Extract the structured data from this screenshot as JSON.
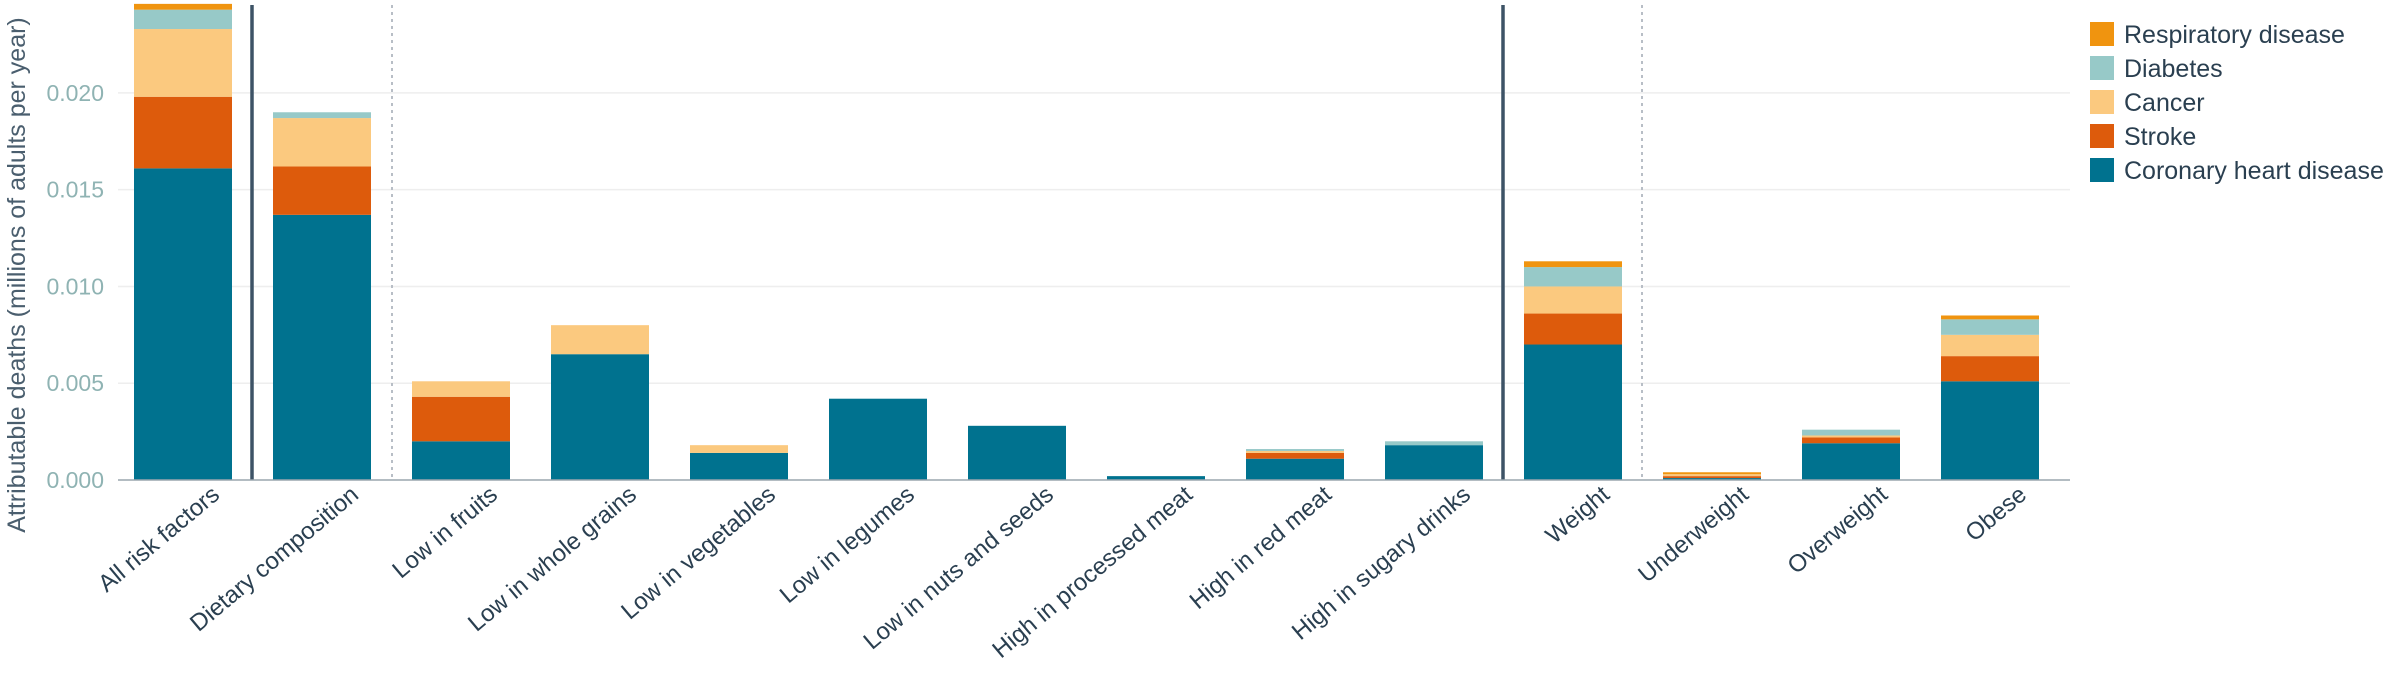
{
  "chart_data": {
    "type": "bar",
    "stacked": true,
    "title": "",
    "xlabel": "",
    "ylabel": "Attributable deaths (millions of adults per year)",
    "ylim": [
      0,
      0.0248
    ],
    "yticks": [
      "0.000",
      "0.005",
      "0.010",
      "0.015",
      "0.020"
    ],
    "ytick_values": [
      0,
      0.005,
      0.01,
      0.015,
      0.02
    ],
    "grid": true,
    "legend_position": "top-right",
    "categories": [
      "All risk factors",
      "Dietary composition",
      "Low in fruits",
      "Low in whole grains",
      "Low in vegetables",
      "Low in legumes",
      "Low in nuts and seeds",
      "High in processed meat",
      "High in red meat",
      "High in sugary drinks",
      "Weight",
      "Underweight",
      "Overweight",
      "Obese"
    ],
    "series": [
      {
        "name": "Coronary heart disease",
        "color": "#00728f",
        "values": [
          0.0161,
          0.0137,
          0.002,
          0.0065,
          0.0014,
          0.0042,
          0.0028,
          0.0002,
          0.0011,
          0.0018,
          0.007,
          0.0001,
          0.0019,
          0.0051
        ]
      },
      {
        "name": "Stroke",
        "color": "#dd5b0c",
        "values": [
          0.0037,
          0.0025,
          0.0023,
          0.0,
          0.0,
          0.0,
          0.0,
          0.0,
          0.0003,
          0.0,
          0.0016,
          0.0001,
          0.0003,
          0.0013
        ]
      },
      {
        "name": "Cancer",
        "color": "#fbc97f",
        "values": [
          0.0035,
          0.0025,
          0.0008,
          0.0015,
          0.0004,
          0.0,
          0.0,
          0.0,
          0.0001,
          0.0,
          0.0014,
          0.0001,
          0.0001,
          0.0011
        ]
      },
      {
        "name": "Diabetes",
        "color": "#97c9c8",
        "values": [
          0.001,
          0.0003,
          0.0,
          0.0,
          0.0,
          0.0,
          0.0,
          0.0,
          0.0001,
          0.0002,
          0.001,
          0.0,
          0.0003,
          0.0008
        ]
      },
      {
        "name": "Respiratory disease",
        "color": "#f0940f",
        "values": [
          0.0003,
          0.0,
          0.0,
          0.0,
          0.0,
          0.0,
          0.0,
          0.0,
          0.0,
          0.0,
          0.0003,
          0.0001,
          0.0,
          0.0002
        ]
      }
    ],
    "legend_order": [
      "Respiratory disease",
      "Diabetes",
      "Cancer",
      "Stroke",
      "Coronary heart disease"
    ]
  },
  "colors": {
    "grid": "#eeeeee",
    "axis": "#9aa5ad",
    "group_divider": "#3d5366",
    "subgroup_divider": "#b8bec6"
  }
}
